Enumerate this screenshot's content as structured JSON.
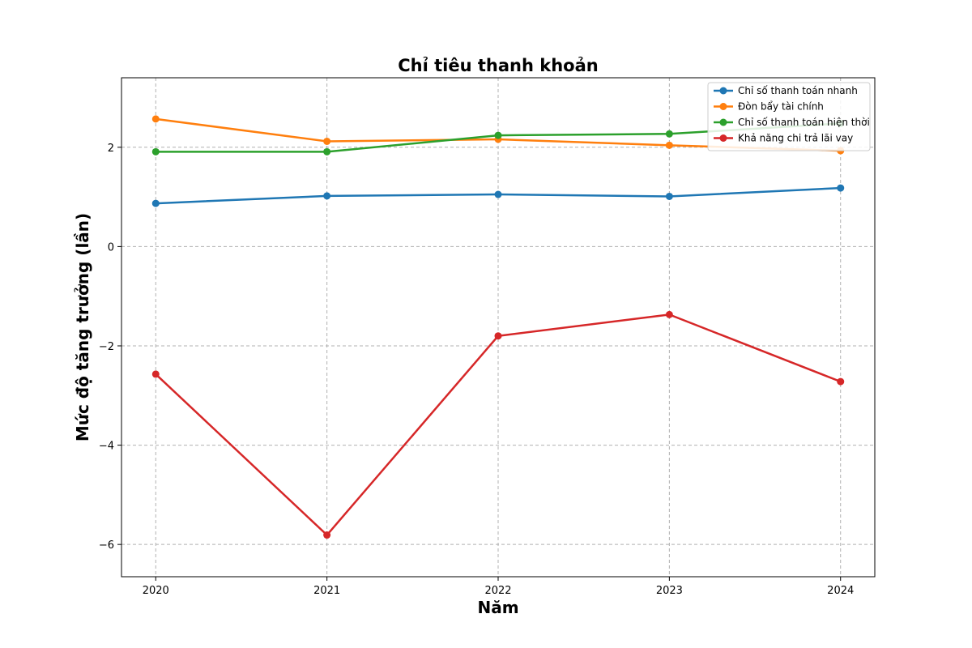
{
  "chart_data": {
    "type": "line",
    "title": "Chỉ tiêu thanh khoản",
    "xlabel": "Năm",
    "ylabel": "Mức độ tăng trưởng (lần)",
    "x": [
      "2020",
      "2021",
      "2022",
      "2023",
      "2024"
    ],
    "xlim": [
      2019.8,
      2024.2
    ],
    "ylim": [
      -6.65,
      3.4
    ],
    "yticks": [
      -6,
      -4,
      -2,
      0,
      2
    ],
    "ytick_labels": [
      "−6",
      "−4",
      "−2",
      "0",
      "2"
    ],
    "grid": true,
    "legend_position": "top-right",
    "series": [
      {
        "name": "Chỉ số thanh toán nhanh",
        "color": "#1f77b4",
        "values": [
          0.87,
          1.02,
          1.05,
          1.01,
          1.18
        ]
      },
      {
        "name": "Đòn bẩy tài chính",
        "color": "#ff7f0e",
        "values": [
          2.57,
          2.12,
          2.16,
          2.04,
          1.93
        ]
      },
      {
        "name": "Chỉ số thanh toán hiện thời",
        "color": "#2ca02c",
        "values": [
          1.91,
          1.91,
          2.24,
          2.27,
          2.48
        ]
      },
      {
        "name": "Khả năng chi trả lãi vay",
        "color": "#d62728",
        "values": [
          -2.57,
          -5.81,
          -1.8,
          -1.37,
          -2.72
        ]
      }
    ]
  }
}
